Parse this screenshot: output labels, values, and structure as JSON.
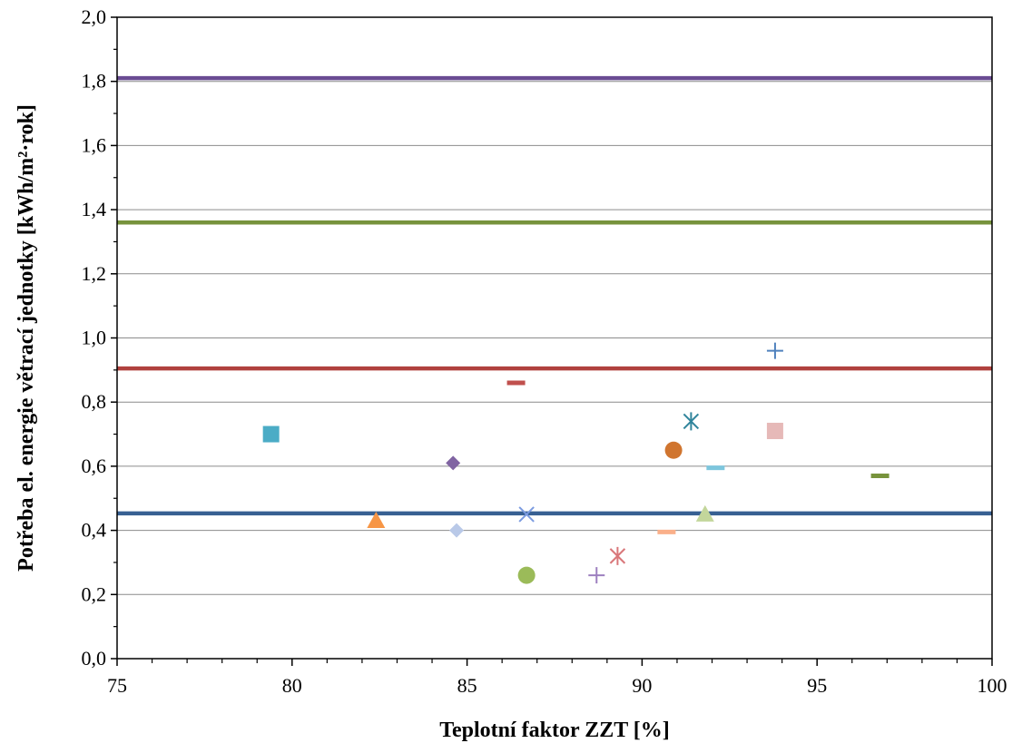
{
  "chart_data": {
    "type": "scatter",
    "title": "",
    "xlabel": "Teplotní faktor ZZT [%]",
    "ylabel": "Potřeba el. energie větrací jednotky [kWh/m²·rok]",
    "xlim": [
      75,
      100
    ],
    "ylim": [
      0,
      2.0
    ],
    "x_ticks": [
      {
        "value": 75,
        "label": "75"
      },
      {
        "value": 80,
        "label": "80"
      },
      {
        "value": 85,
        "label": "85"
      },
      {
        "value": 90,
        "label": "90"
      },
      {
        "value": 95,
        "label": "95"
      },
      {
        "value": 100,
        "label": "100"
      }
    ],
    "y_ticks": [
      {
        "value": 0.0,
        "label": "0,0"
      },
      {
        "value": 0.2,
        "label": "0,2"
      },
      {
        "value": 0.4,
        "label": "0,4"
      },
      {
        "value": 0.6,
        "label": "0,6"
      },
      {
        "value": 0.8,
        "label": "0,8"
      },
      {
        "value": 1.0,
        "label": "1,0"
      },
      {
        "value": 1.2,
        "label": "1,2"
      },
      {
        "value": 1.4,
        "label": "1,4"
      },
      {
        "value": 1.6,
        "label": "1,6"
      },
      {
        "value": 1.8,
        "label": "1,8"
      },
      {
        "value": 2.0,
        "label": "2,0"
      }
    ],
    "grid": "horizontal",
    "reference_lines": [
      {
        "y": 1.81,
        "color": "#6a4c93"
      },
      {
        "y": 1.36,
        "color": "#77933c"
      },
      {
        "y": 0.905,
        "color": "#b0413e"
      },
      {
        "y": 0.453,
        "color": "#376092"
      }
    ],
    "points": [
      {
        "x": 79.4,
        "y": 0.7,
        "marker": "square",
        "color": "#4bacc6"
      },
      {
        "x": 82.4,
        "y": 0.43,
        "marker": "triangle",
        "color": "#f79646"
      },
      {
        "x": 84.6,
        "y": 0.61,
        "marker": "diamond",
        "color": "#8064a2"
      },
      {
        "x": 84.7,
        "y": 0.4,
        "marker": "diamond",
        "color": "#b9c9e8"
      },
      {
        "x": 86.4,
        "y": 0.86,
        "marker": "dash",
        "color": "#c0504d"
      },
      {
        "x": 86.7,
        "y": 0.45,
        "marker": "x",
        "color": "#7b9be0"
      },
      {
        "x": 86.7,
        "y": 0.26,
        "marker": "circle",
        "color": "#9bbb59"
      },
      {
        "x": 88.7,
        "y": 0.26,
        "marker": "plus",
        "color": "#9d7fbf"
      },
      {
        "x": 89.3,
        "y": 0.32,
        "marker": "star",
        "color": "#d9777a"
      },
      {
        "x": 90.7,
        "y": 0.395,
        "marker": "dash",
        "color": "#fab08a"
      },
      {
        "x": 90.9,
        "y": 0.65,
        "marker": "circle",
        "color": "#d0752f"
      },
      {
        "x": 91.4,
        "y": 0.74,
        "marker": "star",
        "color": "#31859c"
      },
      {
        "x": 91.8,
        "y": 0.45,
        "marker": "triangle",
        "color": "#c3d69b"
      },
      {
        "x": 92.1,
        "y": 0.595,
        "marker": "dash",
        "color": "#7dc6dd"
      },
      {
        "x": 93.8,
        "y": 0.96,
        "marker": "plus",
        "color": "#4f81bd"
      },
      {
        "x": 93.8,
        "y": 0.71,
        "marker": "square",
        "color": "#e6b9b8"
      },
      {
        "x": 96.8,
        "y": 0.57,
        "marker": "dash",
        "color": "#77933c"
      }
    ]
  }
}
